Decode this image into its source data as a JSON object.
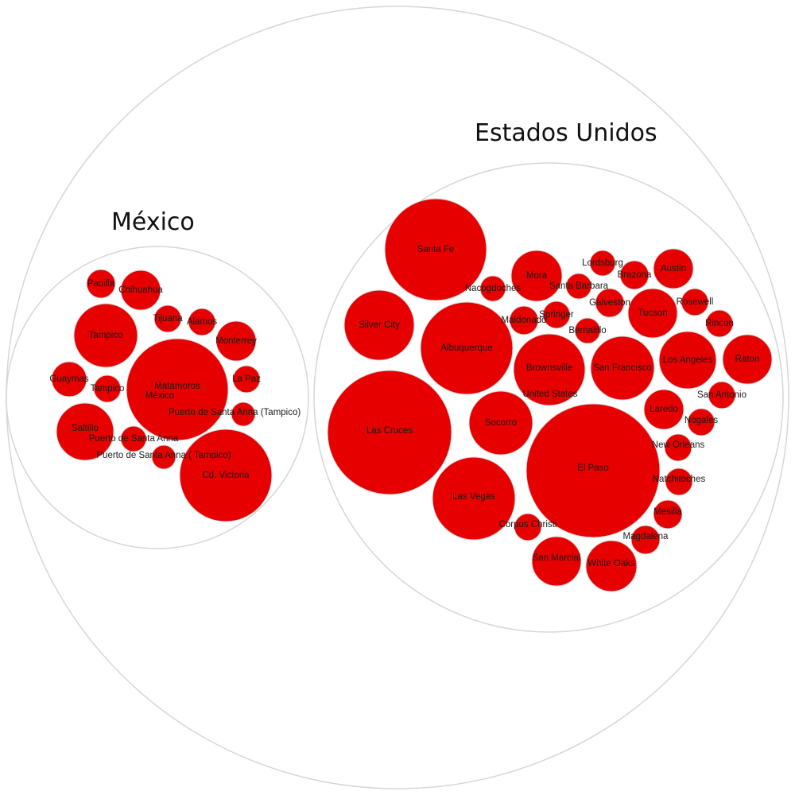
{
  "groups": {
    "mexico": "México",
    "usa": "Estados Unidos"
  },
  "colors": {
    "bubble": "#e60000",
    "bubble_stroke": "#d9d9d9",
    "outer_stroke": "#d6d6d6",
    "label": "#1a1a1a"
  },
  "bubbles": {
    "mexico": [
      {
        "label": "Padilla"
      },
      {
        "label": "Chihuahua"
      },
      {
        "label": "Tampico"
      },
      {
        "label": "Tijuana"
      },
      {
        "label": "Alamos"
      },
      {
        "label": "Monterrey"
      },
      {
        "label": "Guaymas"
      },
      {
        "label": "Tampico"
      },
      {
        "label": "Matamoros"
      },
      {
        "label": "México"
      },
      {
        "label": "La Paz"
      },
      {
        "label": "Puerto de Santa Anna (Tampico)"
      },
      {
        "label": "Saltillo"
      },
      {
        "label": "Puerto de Santa Anna"
      },
      {
        "label": "Puerto de Santa Anna ( Tampico)"
      },
      {
        "label": "Cd. Victoria"
      }
    ],
    "usa": [
      {
        "label": "Santa Fe"
      },
      {
        "label": "Silver City"
      },
      {
        "label": "Las Cruces"
      },
      {
        "label": "Albuquerque"
      },
      {
        "label": "Mora"
      },
      {
        "label": "Nacogdoches"
      },
      {
        "label": "Santa Barbara"
      },
      {
        "label": "Lordsburg"
      },
      {
        "label": "Brazona"
      },
      {
        "label": "Austin"
      },
      {
        "label": "Maldonado"
      },
      {
        "label": "Springer"
      },
      {
        "label": "Galveston"
      },
      {
        "label": "Tucson"
      },
      {
        "label": "Rosewell"
      },
      {
        "label": "Bernalillo"
      },
      {
        "label": "Rincon"
      },
      {
        "label": "Brownsville"
      },
      {
        "label": "San Francisco"
      },
      {
        "label": "Los Angeles"
      },
      {
        "label": "Raton"
      },
      {
        "label": "United States"
      },
      {
        "label": "San Antonio"
      },
      {
        "label": "Socorro"
      },
      {
        "label": "Laredo"
      },
      {
        "label": "Nogales"
      },
      {
        "label": "El Paso"
      },
      {
        "label": "New Orleans"
      },
      {
        "label": "Las Vegas"
      },
      {
        "label": "Natchitoches"
      },
      {
        "label": "Mesilla"
      },
      {
        "label": "Corpus Christi"
      },
      {
        "label": "Magdalena"
      },
      {
        "label": "San Marcial"
      },
      {
        "label": "White Oaks"
      }
    ]
  }
}
